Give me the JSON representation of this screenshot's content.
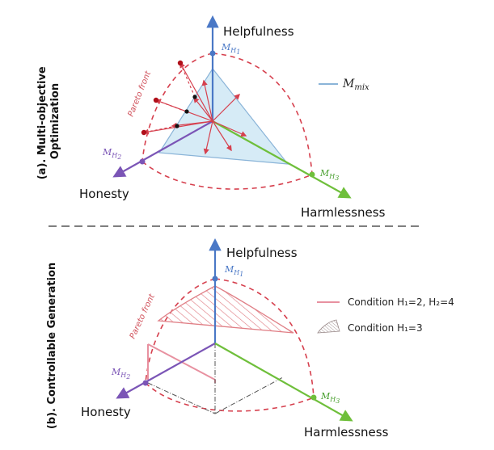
{
  "colors": {
    "helpfulness_axis": "#4a78c6",
    "honesty_axis": "#7b55b6",
    "harmlessness_axis": "#6fbf3b",
    "pareto": "#d6404e",
    "mix_fill": "#cfe8f5",
    "mix_stroke": "#8ab4d8",
    "hatch": "#e07f86"
  },
  "panel_a": {
    "label": "(a). Multi-objective Optimization",
    "label_line1": "(a). Multi-objective",
    "label_line2": "Optimization",
    "axis_helpfulness": "Helpfulness",
    "axis_honesty": "Honesty",
    "axis_harmlessness": "Harmlessness",
    "model_h1": {
      "base": "M",
      "sub": "H1",
      "sub_base": "H",
      "sub_num": "1"
    },
    "model_h2": {
      "base": "M",
      "sub": "H2",
      "sub_base": "H",
      "sub_num": "2"
    },
    "model_h3": {
      "base": "M",
      "sub": "H3",
      "sub_base": "H",
      "sub_num": "3"
    },
    "pareto_label": "Pareto front",
    "legend_mix": {
      "base": "M",
      "sub": "mix"
    }
  },
  "panel_b": {
    "label": "(b). Controllable Generation",
    "axis_helpfulness": "Helpfulness",
    "axis_honesty": "Honesty",
    "axis_harmlessness": "Harmlessness",
    "model_h1": {
      "base": "M",
      "sub": "H1",
      "sub_base": "H",
      "sub_num": "1"
    },
    "model_h2": {
      "base": "M",
      "sub": "H2",
      "sub_base": "H",
      "sub_num": "2"
    },
    "model_h3": {
      "base": "M",
      "sub": "H3",
      "sub_base": "H",
      "sub_num": "3"
    },
    "pareto_label": "Pareto front",
    "legend_condition_1": "Condition H₁=2, H₂=4",
    "legend_condition_2": "Condition H₁=3"
  }
}
